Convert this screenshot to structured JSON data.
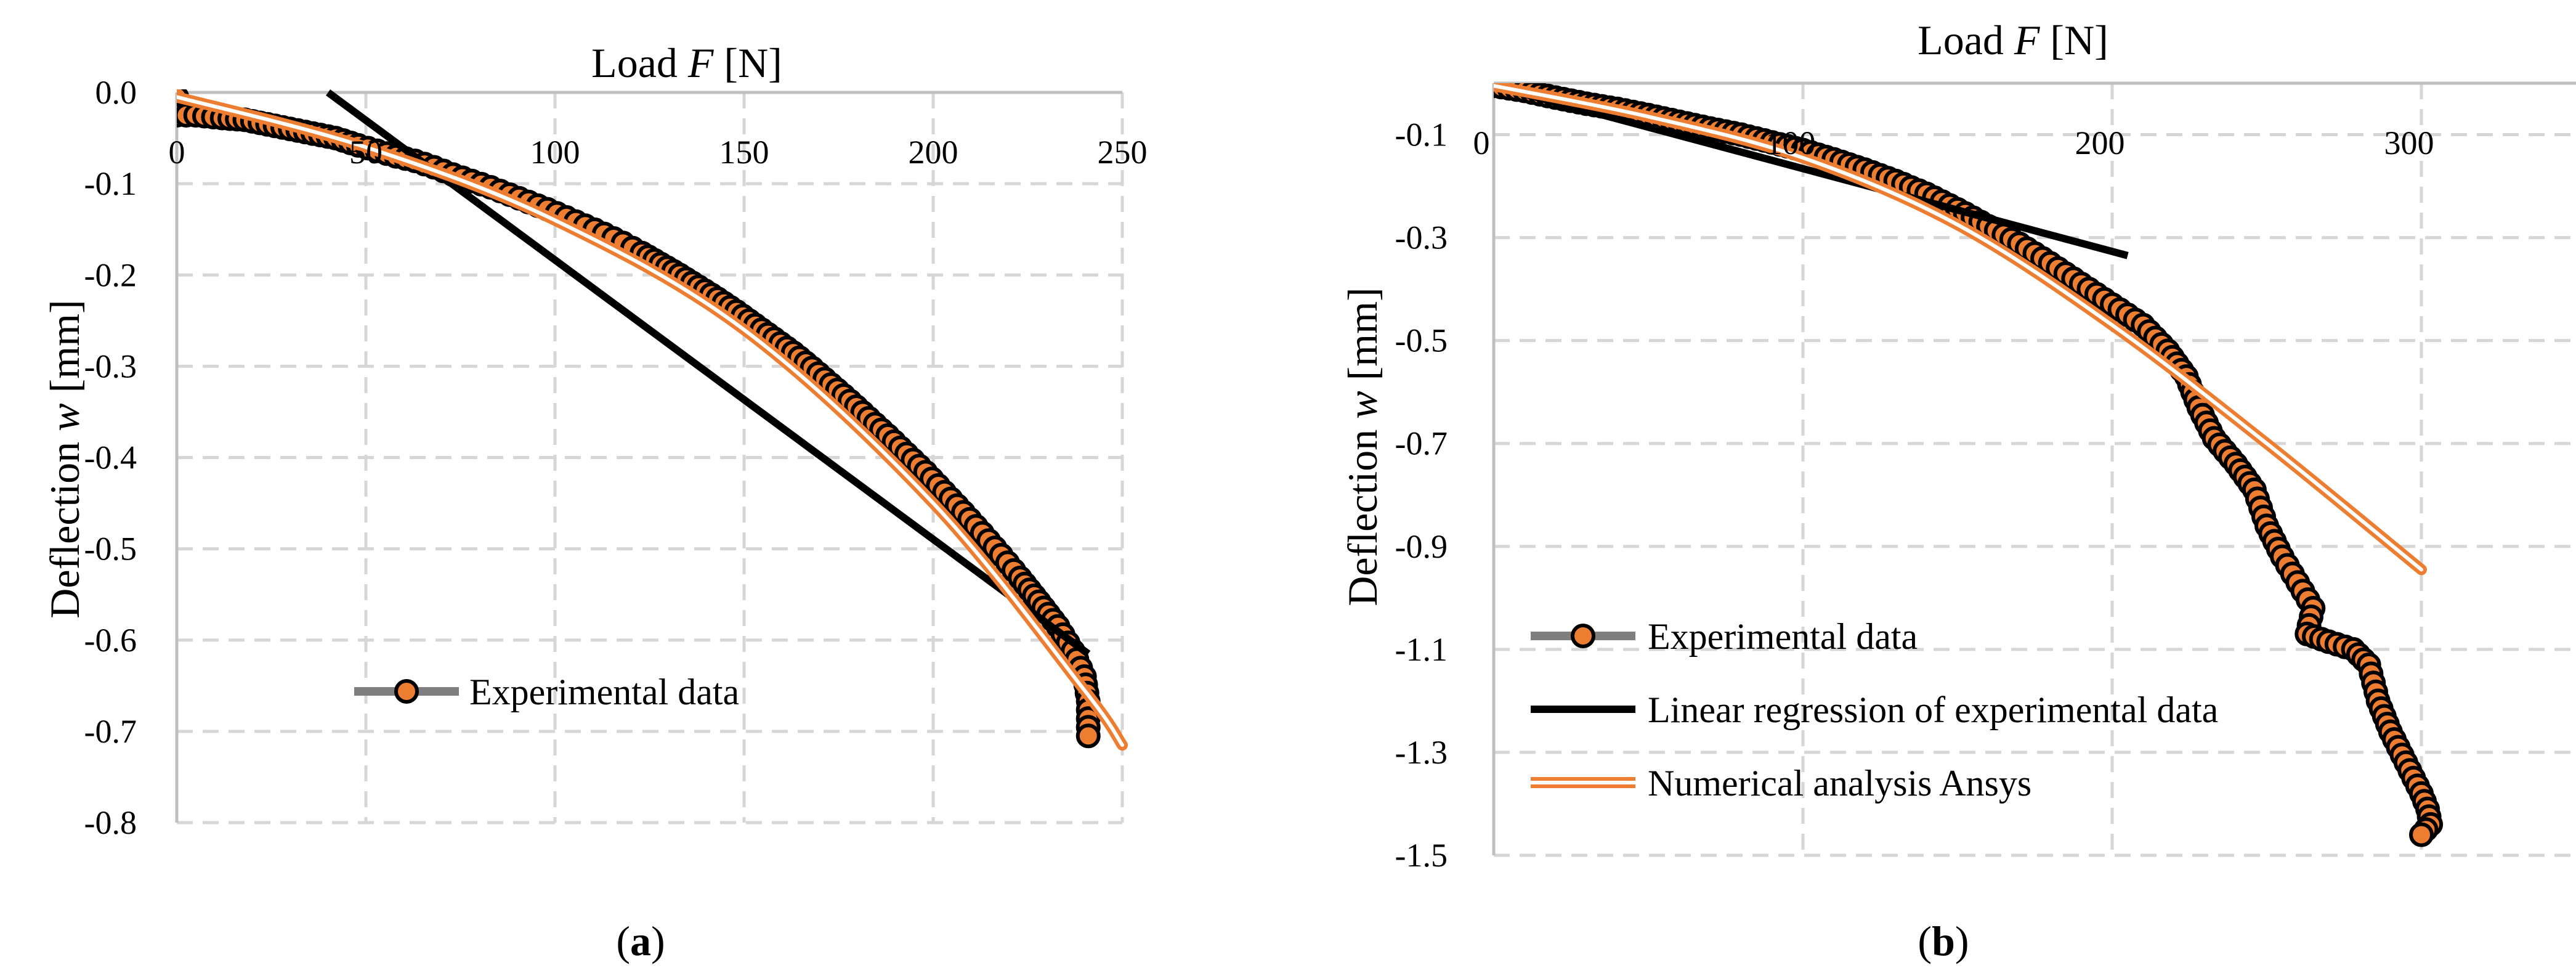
{
  "chart_data": [
    {
      "type": "scatter",
      "panel": "a",
      "panel_label_prefix": "(",
      "panel_label_letter": "a",
      "panel_label_suffix": ")",
      "xlabel_pre": "Load ",
      "xlabel_var": "F",
      "xlabel_post": " [N]",
      "ylabel_pre": "Deflection ",
      "ylabel_var": "w",
      "ylabel_post": " [mm]",
      "xlim": [
        0,
        250
      ],
      "ylim": [
        -0.8,
        0.0
      ],
      "x_ticks": [
        0,
        50,
        100,
        150,
        200,
        250
      ],
      "x_tick_labels": [
        "0",
        "50",
        "100",
        "150",
        "200",
        "250"
      ],
      "y_ticks": [
        0.0,
        -0.1,
        -0.2,
        -0.3,
        -0.4,
        -0.5,
        -0.6,
        -0.7,
        -0.8
      ],
      "y_tick_labels": [
        "0.0",
        "-0.1",
        "-0.2",
        "-0.3",
        "-0.4",
        "-0.5",
        "-0.6",
        "-0.7",
        "-0.8"
      ],
      "grid": true,
      "legend": [
        "Experimental data"
      ],
      "series": [
        {
          "name": "Experimental data",
          "style": "markers",
          "points": [
            [
              0,
              -0.005
            ],
            [
              0,
              -0.025
            ],
            [
              5,
              -0.025
            ],
            [
              12,
              -0.028
            ],
            [
              18,
              -0.03
            ],
            [
              24,
              -0.035
            ],
            [
              30,
              -0.04
            ],
            [
              36,
              -0.045
            ],
            [
              42,
              -0.05
            ],
            [
              48,
              -0.058
            ],
            [
              53,
              -0.064
            ],
            [
              58,
              -0.07
            ],
            [
              63,
              -0.075
            ],
            [
              68,
              -0.082
            ],
            [
              73,
              -0.09
            ],
            [
              78,
              -0.097
            ],
            [
              83,
              -0.104
            ],
            [
              88,
              -0.112
            ],
            [
              93,
              -0.12
            ],
            [
              98,
              -0.128
            ],
            [
              103,
              -0.137
            ],
            [
              108,
              -0.146
            ],
            [
              113,
              -0.155
            ],
            [
              118,
              -0.165
            ],
            [
              123,
              -0.176
            ],
            [
              128,
              -0.188
            ],
            [
              133,
              -0.2
            ],
            [
              138,
              -0.213
            ],
            [
              143,
              -0.226
            ],
            [
              148,
              -0.24
            ],
            [
              153,
              -0.255
            ],
            [
              158,
              -0.27
            ],
            [
              163,
              -0.285
            ],
            [
              168,
              -0.302
            ],
            [
              173,
              -0.32
            ],
            [
              178,
              -0.338
            ],
            [
              183,
              -0.357
            ],
            [
              188,
              -0.376
            ],
            [
              193,
              -0.396
            ],
            [
              198,
              -0.416
            ],
            [
              203,
              -0.438
            ],
            [
              208,
              -0.46
            ],
            [
              213,
              -0.483
            ],
            [
              218,
              -0.507
            ],
            [
              223,
              -0.532
            ],
            [
              228,
              -0.558
            ],
            [
              233,
              -0.585
            ],
            [
              237,
              -0.612
            ],
            [
              240,
              -0.64
            ],
            [
              241,
              -0.667
            ],
            [
              241,
              -0.705
            ]
          ]
        },
        {
          "name": "Linear regression of experimental data",
          "style": "line",
          "points": [
            [
              40,
              0.0
            ],
            [
              241,
              -0.615
            ]
          ]
        },
        {
          "name": "Numerical analysis Ansys",
          "style": "double-line",
          "points": [
            [
              0,
              -0.005
            ],
            [
              50,
              -0.06
            ],
            [
              100,
              -0.14
            ],
            [
              150,
              -0.26
            ],
            [
              200,
              -0.45
            ],
            [
              240,
              -0.655
            ],
            [
              250,
              -0.715
            ]
          ]
        }
      ]
    },
    {
      "type": "scatter",
      "panel": "b",
      "panel_label_prefix": "(",
      "panel_label_letter": "b",
      "panel_label_suffix": ")",
      "xlabel_pre": "Load ",
      "xlabel_var": "F",
      "xlabel_post": " [N]",
      "ylabel_pre": "Deflection ",
      "ylabel_var": "w",
      "ylabel_post": " [mm]",
      "xlim": [
        0,
        350
      ],
      "ylim": [
        -1.5,
        0.0
      ],
      "x_ticks": [
        0,
        100,
        200,
        300
      ],
      "x_tick_labels": [
        "0",
        "100",
        "200",
        "300"
      ],
      "y_ticks": [
        -0.1,
        -0.3,
        -0.5,
        -0.7,
        -0.9,
        -1.1,
        -1.3,
        -1.5
      ],
      "y_tick_labels": [
        "-0.1",
        "-0.3",
        "-0.5",
        "-0.7",
        "-0.9",
        "-1.1",
        "-1.3",
        "-1.5"
      ],
      "grid": true,
      "legend": [
        "Experimental data",
        "Linear regression of experimental data",
        "Numerical analysis Ansys"
      ],
      "series": [
        {
          "name": "Experimental data",
          "style": "markers",
          "points": [
            [
              0,
              -0.005
            ],
            [
              10,
              -0.015
            ],
            [
              20,
              -0.028
            ],
            [
              30,
              -0.04
            ],
            [
              40,
              -0.05
            ],
            [
              50,
              -0.062
            ],
            [
              60,
              -0.075
            ],
            [
              70,
              -0.088
            ],
            [
              80,
              -0.1
            ],
            [
              90,
              -0.115
            ],
            [
              100,
              -0.13
            ],
            [
              110,
              -0.148
            ],
            [
              120,
              -0.168
            ],
            [
              130,
              -0.19
            ],
            [
              140,
              -0.215
            ],
            [
              150,
              -0.245
            ],
            [
              160,
              -0.278
            ],
            [
              170,
              -0.312
            ],
            [
              180,
              -0.35
            ],
            [
              190,
              -0.39
            ],
            [
              200,
              -0.43
            ],
            [
              210,
              -0.47
            ],
            [
              218,
              -0.52
            ],
            [
              224,
              -0.57
            ],
            [
              228,
              -0.63
            ],
            [
              233,
              -0.69
            ],
            [
              240,
              -0.74
            ],
            [
              246,
              -0.79
            ],
            [
              250,
              -0.86
            ],
            [
              255,
              -0.92
            ],
            [
              260,
              -0.97
            ],
            [
              265,
              -1.02
            ],
            [
              263,
              -1.07
            ],
            [
              270,
              -1.085
            ],
            [
              278,
              -1.1
            ],
            [
              283,
              -1.13
            ],
            [
              286,
              -1.2
            ],
            [
              290,
              -1.26
            ],
            [
              295,
              -1.32
            ],
            [
              300,
              -1.38
            ],
            [
              302,
              -1.41
            ],
            [
              303,
              -1.44
            ],
            [
              300,
              -1.46
            ]
          ]
        },
        {
          "name": "Linear regression of experimental data",
          "style": "line",
          "points": [
            [
              0,
              -0.005
            ],
            [
              205,
              -0.335
            ]
          ]
        },
        {
          "name": "Numerical analysis Ansys",
          "style": "double-line",
          "points": [
            [
              0,
              -0.005
            ],
            [
              50,
              -0.065
            ],
            [
              100,
              -0.145
            ],
            [
              150,
              -0.275
            ],
            [
              200,
              -0.47
            ],
            [
              250,
              -0.7
            ],
            [
              300,
              -0.945
            ]
          ]
        }
      ]
    }
  ]
}
